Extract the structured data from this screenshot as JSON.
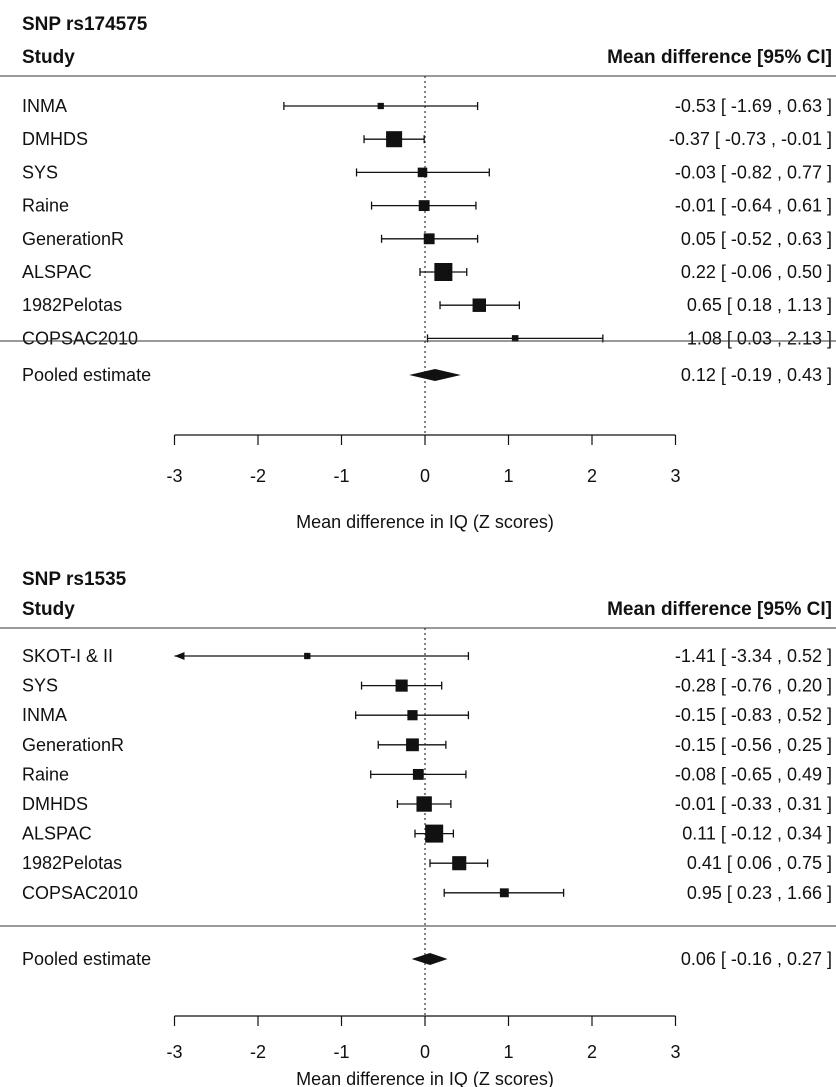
{
  "chart_data": [
    {
      "type": "forest",
      "snp_label": "SNP rs174575",
      "study_header": "Study",
      "effect_header": "Mean difference [95% CI]",
      "xlabel": "Mean difference in IQ (Z scores)",
      "xlim": [
        -3,
        3
      ],
      "ticks": [
        "-3",
        "-2",
        "-1",
        "0",
        "1",
        "2",
        "3"
      ],
      "reference_line": 0,
      "studies": [
        {
          "name": "INMA",
          "est": -0.53,
          "lo": -1.69,
          "hi": 0.63,
          "weight": 0.1,
          "ci_text": "-0.53 [ -1.69 ,  0.63 ]"
        },
        {
          "name": "DMHDS",
          "est": -0.37,
          "lo": -0.73,
          "hi": -0.01,
          "weight": 0.85,
          "ci_text": "-0.37 [ -0.73 , -0.01 ]"
        },
        {
          "name": "SYS",
          "est": -0.03,
          "lo": -0.82,
          "hi": 0.77,
          "weight": 0.35,
          "ci_text": "-0.03 [ -0.82 ,  0.77 ]"
        },
        {
          "name": "Raine",
          "est": -0.01,
          "lo": -0.64,
          "hi": 0.61,
          "weight": 0.45,
          "ci_text": "-0.01 [ -0.64 ,  0.61 ]"
        },
        {
          "name": "GenerationR",
          "est": 0.05,
          "lo": -0.52,
          "hi": 0.63,
          "weight": 0.45,
          "ci_text": "0.05 [ -0.52 ,  0.63 ]"
        },
        {
          "name": "ALSPAC",
          "est": 0.22,
          "lo": -0.06,
          "hi": 0.5,
          "weight": 1.0,
          "ci_text": "0.22 [ -0.06 ,  0.50 ]"
        },
        {
          "name": "1982Pelotas",
          "est": 0.65,
          "lo": 0.18,
          "hi": 1.13,
          "weight": 0.65,
          "ci_text": "0.65 [  0.18 ,  1.13 ]"
        },
        {
          "name": "COPSAC2010",
          "est": 1.08,
          "lo": 0.03,
          "hi": 2.13,
          "weight": 0.12,
          "ci_text": "1.08 [  0.03 ,  2.13 ]"
        }
      ],
      "pooled": {
        "name": "Pooled estimate",
        "est": 0.12,
        "lo": -0.19,
        "hi": 0.43,
        "ci_text": "0.12 [ -0.19 ,  0.43 ]"
      }
    },
    {
      "type": "forest",
      "snp_label": "SNP rs1535",
      "study_header": "Study",
      "effect_header": "Mean difference [95% CI]",
      "xlabel": "Mean difference in IQ (Z scores)",
      "xlim": [
        -3,
        3
      ],
      "ticks": [
        "-3",
        "-2",
        "-1",
        "0",
        "1",
        "2",
        "3"
      ],
      "reference_line": 0,
      "studies": [
        {
          "name": "SKOT-I & II",
          "est": -1.41,
          "lo": -3.34,
          "hi": 0.52,
          "weight": 0.1,
          "ci_text": "-1.41 [ -3.34 , 0.52 ]"
        },
        {
          "name": "SYS",
          "est": -0.28,
          "lo": -0.76,
          "hi": 0.2,
          "weight": 0.55,
          "ci_text": "-0.28 [ -0.76 , 0.20 ]"
        },
        {
          "name": "INMA",
          "est": -0.15,
          "lo": -0.83,
          "hi": 0.52,
          "weight": 0.4,
          "ci_text": "-0.15 [ -0.83 , 0.52 ]"
        },
        {
          "name": "GenerationR",
          "est": -0.15,
          "lo": -0.56,
          "hi": 0.25,
          "weight": 0.6,
          "ci_text": "-0.15 [ -0.56 , 0.25 ]"
        },
        {
          "name": "Raine",
          "est": -0.08,
          "lo": -0.65,
          "hi": 0.49,
          "weight": 0.45,
          "ci_text": "-0.08 [ -0.65 , 0.49 ]"
        },
        {
          "name": "DMHDS",
          "est": -0.01,
          "lo": -0.33,
          "hi": 0.31,
          "weight": 0.8,
          "ci_text": "-0.01 [ -0.33 , 0.31 ]"
        },
        {
          "name": "ALSPAC",
          "est": 0.11,
          "lo": -0.12,
          "hi": 0.34,
          "weight": 1.0,
          "ci_text": "0.11 [ -0.12 , 0.34 ]"
        },
        {
          "name": "1982Pelotas",
          "est": 0.41,
          "lo": 0.06,
          "hi": 0.75,
          "weight": 0.7,
          "ci_text": "0.41 [  0.06 , 0.75 ]"
        },
        {
          "name": "COPSAC2010",
          "est": 0.95,
          "lo": 0.23,
          "hi": 1.66,
          "weight": 0.3,
          "ci_text": "0.95 [  0.23 , 1.66 ]"
        }
      ],
      "pooled": {
        "name": "Pooled estimate",
        "est": 0.06,
        "lo": -0.16,
        "hi": 0.27,
        "ci_text": "0.06 [ -0.16 , 0.27 ]"
      }
    }
  ]
}
